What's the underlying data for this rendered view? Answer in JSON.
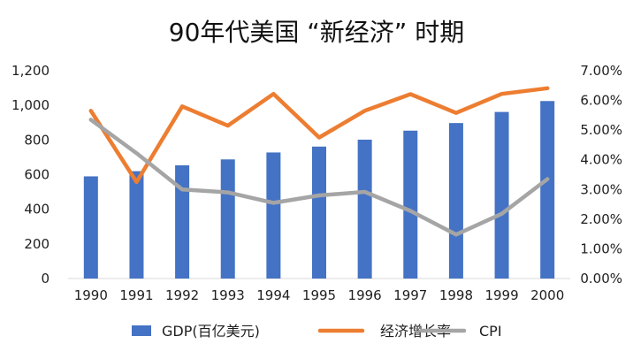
{
  "chart_data": {
    "type": "bar",
    "title": "90年代美国 “新经济” 时期",
    "categories": [
      "1990",
      "1991",
      "1992",
      "1993",
      "1994",
      "1995",
      "1996",
      "1997",
      "1998",
      "1999",
      "2000"
    ],
    "series": [
      {
        "name": "GDP(百亿美元)",
        "type": "bar",
        "axis": "left",
        "color": "#4472C4",
        "values": [
          590,
          620,
          654,
          688,
          728,
          762,
          802,
          854,
          898,
          962,
          1025
        ]
      },
      {
        "name": "经济增长率",
        "type": "line",
        "axis": "right",
        "color": "#ED7D31",
        "values": [
          0.0565,
          0.0325,
          0.058,
          0.0515,
          0.0622,
          0.0475,
          0.0565,
          0.0621,
          0.0558,
          0.0622,
          0.0641
        ]
      },
      {
        "name": "CPI",
        "type": "line",
        "axis": "right",
        "color": "#A5A5A5",
        "values": [
          0.0535,
          0.0422,
          0.03,
          0.029,
          0.0255,
          0.028,
          0.0292,
          0.0228,
          0.0148,
          0.0218,
          0.0335
        ]
      }
    ],
    "left_axis": {
      "ylim": [
        0,
        1200
      ],
      "ticks": [
        0,
        200,
        400,
        600,
        800,
        1000,
        1200
      ],
      "tick_labels": [
        "0",
        "200",
        "400",
        "600",
        "800",
        "1,000",
        "1,200"
      ]
    },
    "right_axis": {
      "ylim": [
        0,
        0.07
      ],
      "ticks": [
        0,
        0.01,
        0.02,
        0.03,
        0.04,
        0.05,
        0.06,
        0.07
      ],
      "tick_labels": [
        "0.00%",
        "1.00%",
        "2.00%",
        "3.00%",
        "4.00%",
        "5.00%",
        "6.00%",
        "7.00%"
      ]
    },
    "legend_position": "bottom",
    "grid": false
  }
}
